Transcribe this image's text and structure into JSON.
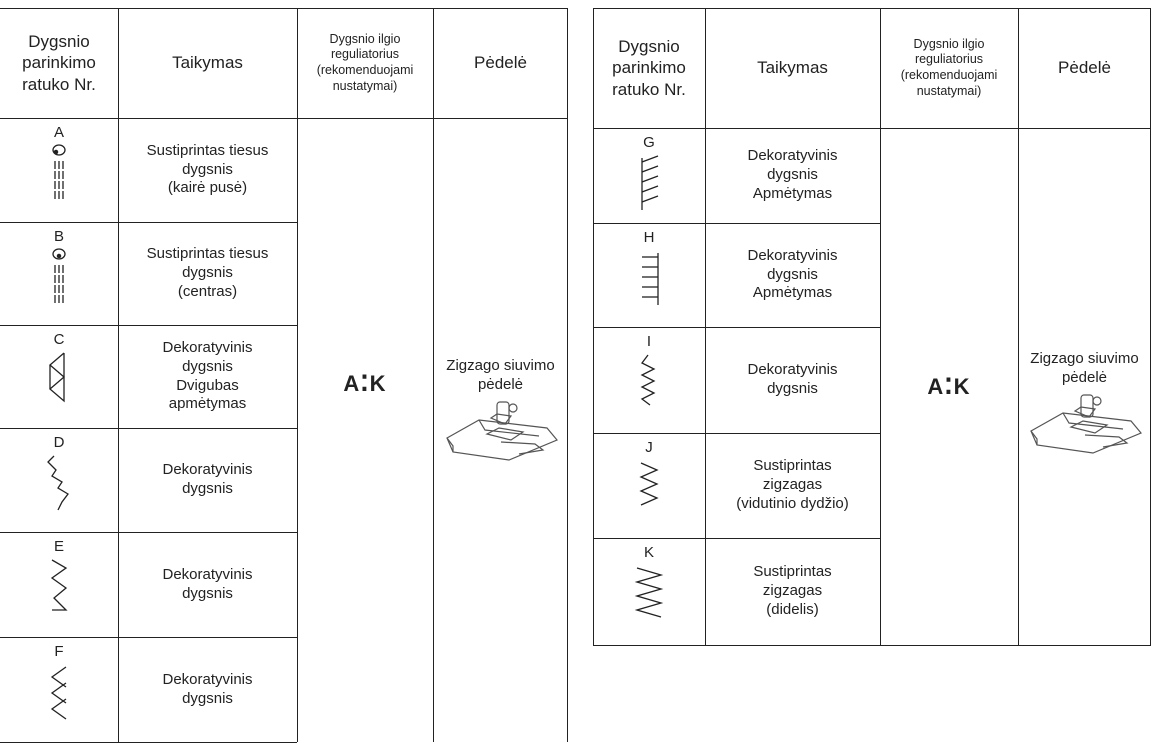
{
  "tables": [
    {
      "header": [
        "Dygsnio\nparinkimo\nratuko Nr.",
        "Taikymas",
        "Dygsnio ilgio\nreguliatorius\n(rekomenduojami\nnustatymai)",
        "Pėdelė"
      ],
      "rows": [
        {
          "letter": "A",
          "application": "Sustiprintas tiesus\ndygsnis\n(kairė pusė)"
        },
        {
          "letter": "B",
          "application": "Sustiprintas tiesus\ndygsnis\n(centras)"
        },
        {
          "letter": "C",
          "application": "Dekoratyvinis\ndygsnis\nDvigubas\napmėtymas"
        },
        {
          "letter": "D",
          "application": "Dekoratyvinis\ndygsnis"
        },
        {
          "letter": "E",
          "application": "Dekoratyvinis\ndygsnis"
        },
        {
          "letter": "F",
          "application": "Dekoratyvinis\ndygsnis"
        }
      ],
      "setting": "A⁚K",
      "foot": "Zigzago siuvimo\npėdelė"
    },
    {
      "header": [
        "Dygsnio\nparinkimo\nratuko Nr.",
        "Taikymas",
        "Dygsnio ilgio\nreguliatorius\n(rekomenduojami\nnustatymai)",
        "Pėdelė"
      ],
      "rows": [
        {
          "letter": "G",
          "application": "Dekoratyvinis\ndygsnis\nApmėtymas"
        },
        {
          "letter": "H",
          "application": "Dekoratyvinis\ndygsnis\nApmėtymas"
        },
        {
          "letter": "I",
          "application": "Dekoratyvinis\ndygsnis"
        },
        {
          "letter": "J",
          "application": "Sustiprintas\nzigzagas\n(vidutinio dydžio)"
        },
        {
          "letter": "K",
          "application": "Sustiprintas\nzigzagas\n(didelis)"
        }
      ],
      "setting": "A⁚K",
      "foot": "Zigzago siuvimo\npėdelė"
    }
  ]
}
